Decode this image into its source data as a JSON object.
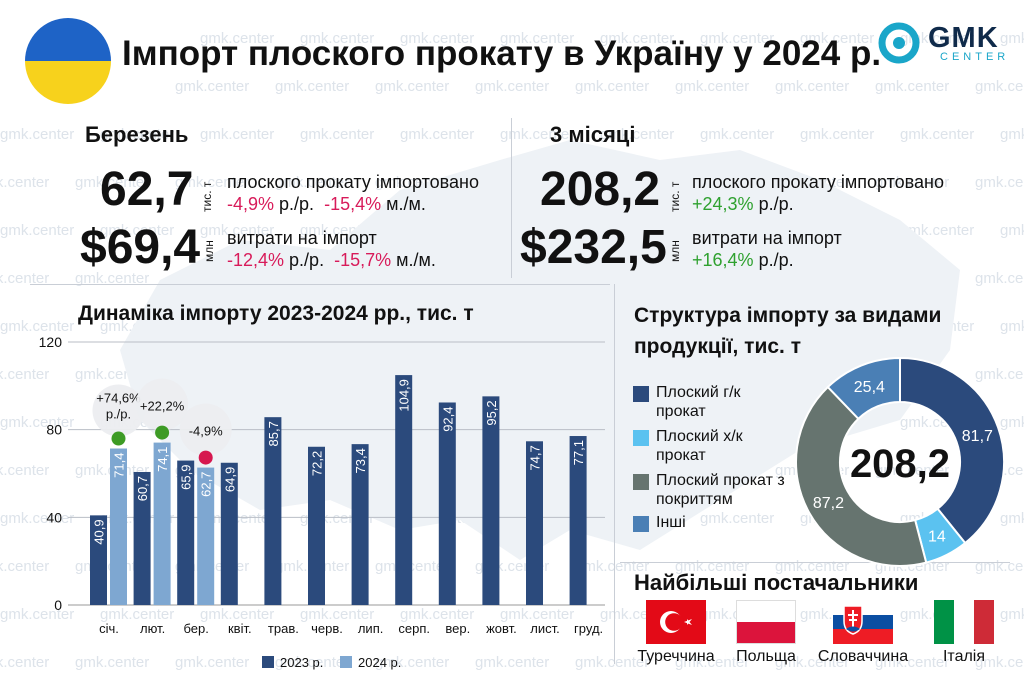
{
  "title": "Імпорт плоского прокату в Україну у 2024 р.",
  "logo": {
    "name": "GMK",
    "sub": "CENTER"
  },
  "watermark": "gmk.center",
  "march": {
    "heading": "Березень",
    "volume_value": "62,7",
    "volume_unit": "тис. т",
    "volume_desc": "плоского прокату імпортовано",
    "volume_yoy": "-4,9%",
    "volume_yoy_sfx": " р./р.",
    "volume_mom": "-15,4%",
    "volume_mom_sfx": " м./м.",
    "cost_value": "$69,4",
    "cost_unit": "млн",
    "cost_desc": "витрати на імпорт",
    "cost_yoy": "-12,4%",
    "cost_yoy_sfx": " р./р.",
    "cost_mom": "-15,7%",
    "cost_mom_sfx": " м./м."
  },
  "q1": {
    "heading": "3 місяці",
    "volume_value": "208,2",
    "volume_unit": "тис. т",
    "volume_desc": "плоского прокату імпортовано",
    "volume_yoy": "+24,3%",
    "volume_yoy_sfx": " р./р.",
    "cost_value": "$232,5",
    "cost_unit": "млн",
    "cost_desc": "витрати на імпорт",
    "cost_yoy": "+16,4%",
    "cost_yoy_sfx": " р./р."
  },
  "colors": {
    "y2023": "#2b4a7c",
    "y2024": "#7ea7d1",
    "pos": "#3d9b25",
    "neg": "#d6174f",
    "dark_navy": "#2b4a7c",
    "light_blue": "#5bc2f0",
    "gray_green": "#66746f",
    "steel": "#4a7fb5"
  },
  "chart_data": [
    {
      "type": "bar",
      "title": "Динаміка імпорту 2023-2024 рр., тис. т",
      "categories": [
        "січ.",
        "лют.",
        "бер.",
        "квіт.",
        "трав.",
        "черв.",
        "лип.",
        "серп.",
        "вер.",
        "жовт.",
        "лист.",
        "груд."
      ],
      "series": [
        {
          "name": "2023 р.",
          "values": [
            40.9,
            60.7,
            65.9,
            64.9,
            85.7,
            72.2,
            73.4,
            104.9,
            92.4,
            95.2,
            74.7,
            77.1
          ],
          "labels": [
            "40,9",
            "60,7",
            "65,9",
            "64,9",
            "85,7",
            "72,2",
            "73,4",
            "104,9",
            "92,4",
            "95,2",
            "74,7",
            "77,1"
          ]
        },
        {
          "name": "2024 р.",
          "values": [
            71.4,
            74.1,
            62.7,
            null,
            null,
            null,
            null,
            null,
            null,
            null,
            null,
            null
          ],
          "labels": [
            "71,4",
            "74,1",
            "62,7"
          ]
        }
      ],
      "ylim": [
        0,
        120
      ],
      "yticks": [
        0,
        40,
        80,
        120
      ],
      "grid": true,
      "legend": "bottom",
      "annotations": [
        {
          "category": "січ.",
          "text": "+74,6% р./р.",
          "sign": "pos"
        },
        {
          "category": "лют.",
          "text": "+22,2%",
          "sign": "pos"
        },
        {
          "category": "бер.",
          "text": "-4,9%",
          "sign": "neg"
        }
      ]
    },
    {
      "type": "pie",
      "title": "Структура імпорту за видами продукції, тис. т",
      "center_label": "208,2",
      "slices": [
        {
          "name": "Плоский г/к прокат",
          "value": 81.7,
          "label": "81,7",
          "color": "#2b4a7c"
        },
        {
          "name": "Плоский х/к прокат",
          "value": 14,
          "label": "14",
          "color": "#5bc2f0"
        },
        {
          "name": "Плоский прокат з покриттям",
          "value": 87.2,
          "label": "87,2",
          "color": "#66746f"
        },
        {
          "name": "Інші",
          "value": 25.4,
          "label": "25,4",
          "color": "#4a7fb5"
        }
      ],
      "legend": "left"
    }
  ],
  "suppliers": {
    "heading": "Найбільші постачальники",
    "countries": [
      "Туреччина",
      "Польща",
      "Словаччина",
      "Італія"
    ]
  }
}
